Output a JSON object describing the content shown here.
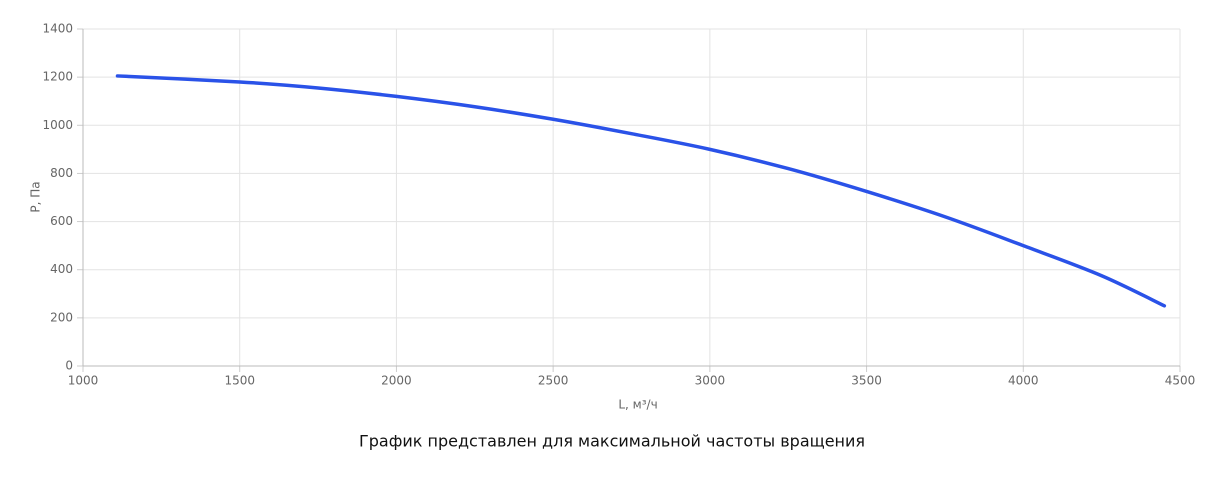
{
  "chart_data": {
    "type": "line",
    "x_label": "L, м³/ч",
    "y_label": "P, Па",
    "caption": "График представлен для максимальной частоты вращения",
    "x": [
      1110,
      1500,
      1750,
      2000,
      2250,
      2500,
      2750,
      3000,
      3250,
      3500,
      3750,
      4000,
      4250,
      4450
    ],
    "series": [
      {
        "color": "#2a52e8",
        "values": [
          1205,
          1180,
          1155,
          1120,
          1077,
          1025,
          965,
          900,
          820,
          725,
          620,
          500,
          375,
          250
        ]
      }
    ],
    "xlim": [
      1000,
      4500
    ],
    "xticks": [
      1000,
      1500,
      2000,
      2500,
      3000,
      3500,
      4000,
      4500
    ],
    "ylim": [
      0,
      1400
    ],
    "yticks": [
      0,
      200,
      400,
      600,
      800,
      1000,
      1200,
      1400
    ],
    "grid": true
  }
}
